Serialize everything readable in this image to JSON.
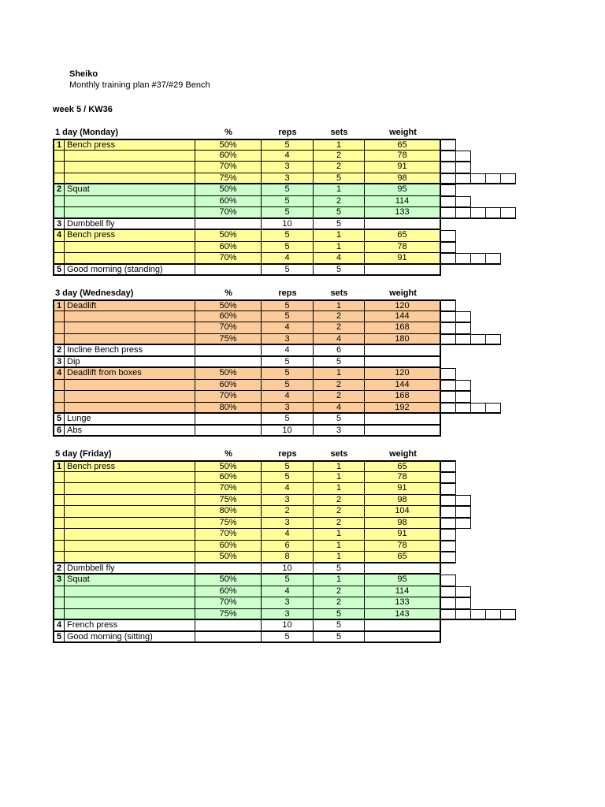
{
  "page": {
    "title": "Sheiko",
    "subtitle": "Monthly training plan #37/#29 Bench",
    "week_label": "week 5 / KW36"
  },
  "columns": {
    "percent": "%",
    "reps": "reps",
    "sets": "sets",
    "weight": "weight"
  },
  "colors": {
    "yellow": "#FFFF99",
    "green": "#CCFFCC",
    "orange": "#FBCC99",
    "white": "#FFFFFF",
    "border": "#000000"
  },
  "days": [
    {
      "label": "1 day (Monday)",
      "exercises": [
        {
          "num": "1",
          "name": "Bench press",
          "color": "yellow",
          "rows": [
            {
              "percent": "50%",
              "reps": "5",
              "sets": "1",
              "weight": "65",
              "boxes": 1
            },
            {
              "percent": "60%",
              "reps": "4",
              "sets": "2",
              "weight": "78",
              "boxes": 2
            },
            {
              "percent": "70%",
              "reps": "3",
              "sets": "2",
              "weight": "91",
              "boxes": 2
            },
            {
              "percent": "75%",
              "reps": "3",
              "sets": "5",
              "weight": "98",
              "boxes": 5
            }
          ]
        },
        {
          "num": "2",
          "name": "Squat",
          "color": "green",
          "rows": [
            {
              "percent": "50%",
              "reps": "5",
              "sets": "1",
              "weight": "95",
              "boxes": 1
            },
            {
              "percent": "60%",
              "reps": "5",
              "sets": "2",
              "weight": "114",
              "boxes": 2
            },
            {
              "percent": "70%",
              "reps": "5",
              "sets": "5",
              "weight": "133",
              "boxes": 5
            }
          ]
        },
        {
          "num": "3",
          "name": "Dumbbell fly",
          "color": "white",
          "rows": [
            {
              "percent": "",
              "reps": "10",
              "sets": "5",
              "weight": "",
              "boxes": 0
            }
          ]
        },
        {
          "num": "4",
          "name": "Bench press",
          "color": "yellow",
          "rows": [
            {
              "percent": "50%",
              "reps": "5",
              "sets": "1",
              "weight": "65",
              "boxes": 1
            },
            {
              "percent": "60%",
              "reps": "5",
              "sets": "1",
              "weight": "78",
              "boxes": 1
            },
            {
              "percent": "70%",
              "reps": "4",
              "sets": "4",
              "weight": "91",
              "boxes": 4
            }
          ]
        },
        {
          "num": "5",
          "name": "Good morning (standing)",
          "color": "white",
          "rows": [
            {
              "percent": "",
              "reps": "5",
              "sets": "5",
              "weight": "",
              "boxes": 0
            }
          ]
        }
      ]
    },
    {
      "label": "3 day (Wednesday)",
      "exercises": [
        {
          "num": "1",
          "name": "Deadlift",
          "color": "orange",
          "rows": [
            {
              "percent": "50%",
              "reps": "5",
              "sets": "1",
              "weight": "120",
              "boxes": 1
            },
            {
              "percent": "60%",
              "reps": "5",
              "sets": "2",
              "weight": "144",
              "boxes": 2
            },
            {
              "percent": "70%",
              "reps": "4",
              "sets": "2",
              "weight": "168",
              "boxes": 2
            },
            {
              "percent": "75%",
              "reps": "3",
              "sets": "4",
              "weight": "180",
              "boxes": 4
            }
          ]
        },
        {
          "num": "2",
          "name": "Incline Bench press",
          "color": "white",
          "rows": [
            {
              "percent": "",
              "reps": "4",
              "sets": "6",
              "weight": "",
              "boxes": 0
            }
          ]
        },
        {
          "num": "3",
          "name": "Dip",
          "color": "white",
          "rows": [
            {
              "percent": "",
              "reps": "5",
              "sets": "5",
              "weight": "",
              "boxes": 0
            }
          ]
        },
        {
          "num": "4",
          "name": "Deadlift from boxes",
          "color": "orange",
          "rows": [
            {
              "percent": "50%",
              "reps": "5",
              "sets": "1",
              "weight": "120",
              "boxes": 1
            },
            {
              "percent": "60%",
              "reps": "5",
              "sets": "2",
              "weight": "144",
              "boxes": 2
            },
            {
              "percent": "70%",
              "reps": "4",
              "sets": "2",
              "weight": "168",
              "boxes": 2
            },
            {
              "percent": "80%",
              "reps": "3",
              "sets": "4",
              "weight": "192",
              "boxes": 4
            }
          ]
        },
        {
          "num": "5",
          "name": "Lunge",
          "color": "white",
          "rows": [
            {
              "percent": "",
              "reps": "5",
              "sets": "5",
              "weight": "",
              "boxes": 0
            }
          ]
        },
        {
          "num": "6",
          "name": "Abs",
          "color": "white",
          "rows": [
            {
              "percent": "",
              "reps": "10",
              "sets": "3",
              "weight": "",
              "boxes": 0
            }
          ]
        }
      ]
    },
    {
      "label": "5 day (Friday)",
      "exercises": [
        {
          "num": "1",
          "name": "Bench press",
          "color": "yellow",
          "rows": [
            {
              "percent": "50%",
              "reps": "5",
              "sets": "1",
              "weight": "65",
              "boxes": 1
            },
            {
              "percent": "60%",
              "reps": "5",
              "sets": "1",
              "weight": "78",
              "boxes": 1
            },
            {
              "percent": "70%",
              "reps": "4",
              "sets": "1",
              "weight": "91",
              "boxes": 1
            },
            {
              "percent": "75%",
              "reps": "3",
              "sets": "2",
              "weight": "98",
              "boxes": 2
            },
            {
              "percent": "80%",
              "reps": "2",
              "sets": "2",
              "weight": "104",
              "boxes": 2
            },
            {
              "percent": "75%",
              "reps": "3",
              "sets": "2",
              "weight": "98",
              "boxes": 2
            },
            {
              "percent": "70%",
              "reps": "4",
              "sets": "1",
              "weight": "91",
              "boxes": 1
            },
            {
              "percent": "60%",
              "reps": "6",
              "sets": "1",
              "weight": "78",
              "boxes": 1
            },
            {
              "percent": "50%",
              "reps": "8",
              "sets": "1",
              "weight": "65",
              "boxes": 1
            }
          ]
        },
        {
          "num": "2",
          "name": "Dumbbell fly",
          "color": "white",
          "rows": [
            {
              "percent": "",
              "reps": "10",
              "sets": "5",
              "weight": "",
              "boxes": 0
            }
          ]
        },
        {
          "num": "3",
          "name": "Squat",
          "color": "green",
          "rows": [
            {
              "percent": "50%",
              "reps": "5",
              "sets": "1",
              "weight": "95",
              "boxes": 1
            },
            {
              "percent": "60%",
              "reps": "4",
              "sets": "2",
              "weight": "114",
              "boxes": 2
            },
            {
              "percent": "70%",
              "reps": "3",
              "sets": "2",
              "weight": "133",
              "boxes": 2
            },
            {
              "percent": "75%",
              "reps": "3",
              "sets": "5",
              "weight": "143",
              "boxes": 5
            }
          ]
        },
        {
          "num": "4",
          "name": "French press",
          "color": "white",
          "rows": [
            {
              "percent": "",
              "reps": "10",
              "sets": "5",
              "weight": "",
              "boxes": 0
            }
          ]
        },
        {
          "num": "5",
          "name": "Good morning (sitting)",
          "color": "white",
          "rows": [
            {
              "percent": "",
              "reps": "5",
              "sets": "5",
              "weight": "",
              "boxes": 0
            }
          ]
        }
      ]
    }
  ]
}
